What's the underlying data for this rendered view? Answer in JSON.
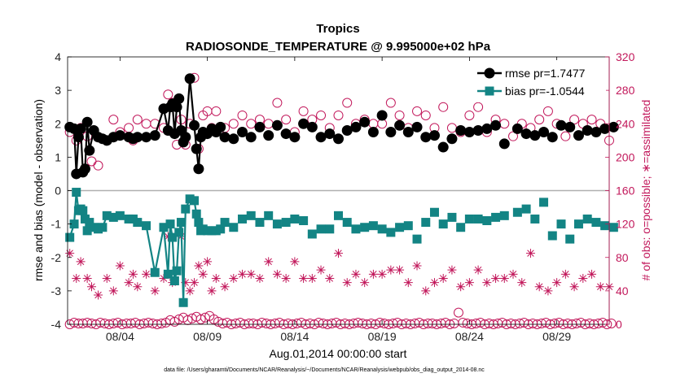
{
  "colors": {
    "rmse": "#000000",
    "bias": "#138484",
    "obs": "#c2185b",
    "zero_line": "#b0b0b0"
  },
  "chart_data": {
    "type": "line",
    "title": "Tropics",
    "subtitle": "RADIOSONDE_TEMPERATURE @ 9.995000e+02 hPa",
    "xlabel": "Aug.01,2014 00:00:00 start",
    "ylabel": "rmse and bias (model - observation)",
    "ylabel_right": "# of obs: o=possible; ∗=assimilated",
    "xlim": [
      0,
      31
    ],
    "ylim": [
      -4,
      4
    ],
    "ylim_right": [
      0,
      320
    ],
    "x_ticks": [
      3,
      8,
      13,
      18,
      23,
      28
    ],
    "x_tick_labels": [
      "08/04",
      "08/09",
      "08/14",
      "08/19",
      "08/24",
      "08/29"
    ],
    "y_ticks": [
      -4,
      -3,
      -2,
      -1,
      0,
      1,
      2,
      3,
      4
    ],
    "y_tick_labels": [
      "-4",
      "-3",
      "-2",
      "-1",
      "0",
      "1",
      "2",
      "3",
      "4"
    ],
    "y_ticks_right": [
      0,
      40,
      80,
      120,
      160,
      200,
      240,
      280,
      320
    ],
    "y_tick_labels_right": [
      "0",
      "40",
      "80",
      "120",
      "160",
      "200",
      "240",
      "280",
      "320"
    ],
    "legend": [
      {
        "key": "rmse",
        "label": "rmse pr=1.7477"
      },
      {
        "key": "bias",
        "label": "bias pr=-1.0544"
      }
    ],
    "legend_position": "top-right",
    "footnote": "data file: /Users/gharamti/Documents/NCAR/Reanalysis/~/Documents/NCAR/Reanalysis/webpub/obs_diag_output_2014-08.nc",
    "series": [
      {
        "name": "rmse",
        "axis": "left",
        "connected_segments": [
          [
            0,
            13
          ],
          [
            17,
            20
          ]
        ],
        "x": [
          0.125,
          0.375,
          0.5,
          0.625,
          0.75,
          0.875,
          1.0,
          1.125,
          1.25,
          1.5,
          1.75,
          2.0,
          2.25,
          2.625,
          3.0,
          3.5,
          3.75,
          4.0,
          4.5,
          5.0,
          5.5,
          5.75,
          5.875,
          6.0,
          6.125,
          6.25,
          6.375,
          6.5,
          6.625,
          6.75,
          7.0,
          7.25,
          7.375,
          7.5,
          7.625,
          7.75,
          8.0,
          8.25,
          8.5,
          8.75,
          9.0,
          9.5,
          10.0,
          10.5,
          11.0,
          11.5,
          12.0,
          12.5,
          13.0,
          13.5,
          14.0,
          14.5,
          15.0,
          15.5,
          16.0,
          16.5,
          17.0,
          17.5,
          18.0,
          18.5,
          19.0,
          19.5,
          20.0,
          20.5,
          21.0,
          21.5,
          22.0,
          22.5,
          23.0,
          23.5,
          24.0,
          24.5,
          25.0,
          25.75,
          26.25,
          26.75,
          27.25,
          27.75,
          28.25,
          28.75,
          29.25,
          29.75,
          30.25,
          30.75,
          31.25
        ],
        "values": [
          1.9,
          1.85,
          0.5,
          1.6,
          1.85,
          0.55,
          0.65,
          2.05,
          1.2,
          1.8,
          1.6,
          1.55,
          1.5,
          1.6,
          1.65,
          1.6,
          1.55,
          1.6,
          1.6,
          1.65,
          2.45,
          1.8,
          2.5,
          2.6,
          1.7,
          2.5,
          2.75,
          1.8,
          1.45,
          1.6,
          3.35,
          1.95,
          1.25,
          0.65,
          1.6,
          1.75,
          1.7,
          1.85,
          1.75,
          1.9,
          1.6,
          1.55,
          1.75,
          1.6,
          1.9,
          1.65,
          1.95,
          1.7,
          1.6,
          2.0,
          1.9,
          1.6,
          1.7,
          1.55,
          1.8,
          1.9,
          2.05,
          1.75,
          2.25,
          1.75,
          1.95,
          1.75,
          1.9,
          1.6,
          1.65,
          1.3,
          1.55,
          1.8,
          1.75,
          1.8,
          1.85,
          1.95,
          1.4,
          1.85,
          1.7,
          1.65,
          1.75,
          1.6,
          1.95,
          1.9,
          1.65,
          1.8,
          1.75,
          1.85,
          1.9
        ]
      },
      {
        "name": "bias",
        "axis": "left",
        "connected_segments": [
          [
            0,
            13
          ],
          [
            17,
            20
          ]
        ],
        "x": [
          0.125,
          0.375,
          0.5,
          0.625,
          0.75,
          0.875,
          1.0,
          1.125,
          1.25,
          1.5,
          1.75,
          2.0,
          2.25,
          2.625,
          3.0,
          3.5,
          3.75,
          4.0,
          4.5,
          5.0,
          5.5,
          5.75,
          5.875,
          6.0,
          6.125,
          6.25,
          6.375,
          6.5,
          6.625,
          6.75,
          7.0,
          7.25,
          7.375,
          7.5,
          7.625,
          7.75,
          8.0,
          8.25,
          8.5,
          8.75,
          9.0,
          9.5,
          10.0,
          10.5,
          11.0,
          11.5,
          12.0,
          12.5,
          13.0,
          13.5,
          14.0,
          14.5,
          15.0,
          15.5,
          16.0,
          16.5,
          17.0,
          17.5,
          18.0,
          18.5,
          19.0,
          19.5,
          20.0,
          20.5,
          21.0,
          21.5,
          22.0,
          22.5,
          23.0,
          23.5,
          24.0,
          24.5,
          25.0,
          25.75,
          26.25,
          26.75,
          27.25,
          27.75,
          28.25,
          28.75,
          29.25,
          29.75,
          30.25,
          30.75,
          31.25
        ],
        "values": [
          -1.4,
          -1.0,
          -0.05,
          -0.6,
          -0.55,
          -0.6,
          -0.85,
          -1.2,
          -0.95,
          -1.1,
          -1.15,
          -1.1,
          -0.75,
          -0.8,
          -0.75,
          -0.85,
          -0.85,
          -0.95,
          -1.05,
          -2.45,
          -1.1,
          -2.5,
          -1.0,
          -1.4,
          -2.7,
          -2.4,
          -1.25,
          -0.95,
          -3.35,
          -0.55,
          -0.25,
          -0.3,
          -0.7,
          -0.95,
          -1.2,
          -1.15,
          -1.2,
          -1.2,
          -1.2,
          -1.15,
          -0.95,
          -1.1,
          -0.85,
          -0.75,
          -0.95,
          -0.75,
          -1.0,
          -0.95,
          -0.85,
          -0.9,
          -1.3,
          -1.15,
          -1.15,
          -0.75,
          -0.95,
          -1.15,
          -1.1,
          -1.05,
          -1.15,
          -1.25,
          -1.1,
          -1.05,
          -1.45,
          -0.95,
          -0.65,
          -1.0,
          -0.8,
          -1.1,
          -0.85,
          -0.85,
          -0.9,
          -0.8,
          -0.75,
          -0.65,
          -0.55,
          -0.85,
          -0.35,
          -1.35,
          -1.0,
          -1.45,
          -1.0,
          -0.85,
          -0.95,
          -1.05,
          -1.1
        ]
      },
      {
        "name": "obs possible",
        "axis": "right",
        "marker": "circle",
        "x": [
          0.125,
          0.5,
          0.75,
          1.125,
          1.375,
          1.75,
          2.25,
          2.625,
          3.0,
          3.5,
          3.75,
          4.0,
          4.5,
          5.0,
          5.5,
          5.75,
          6.0,
          6.25,
          6.5,
          6.75,
          7.0,
          7.25,
          7.5,
          7.75,
          8.0,
          8.25,
          8.5,
          9.0,
          9.5,
          10.0,
          10.5,
          11.0,
          11.5,
          12.0,
          12.5,
          13.0,
          13.5,
          14.0,
          14.5,
          15.0,
          15.5,
          16.0,
          16.5,
          17.0,
          17.5,
          18.0,
          18.5,
          19.0,
          19.5,
          20.0,
          20.5,
          21.0,
          21.5,
          22.0,
          22.5,
          23.0,
          23.5,
          24.0,
          24.5,
          25.0,
          25.5,
          26.0,
          26.5,
          27.0,
          27.5,
          28.0,
          28.5,
          29.0,
          29.5,
          30.0,
          30.5,
          31.0
        ],
        "values": [
          230,
          220,
          235,
          225,
          195,
          190,
          220,
          245,
          230,
          235,
          220,
          245,
          240,
          240,
          235,
          275,
          265,
          215,
          245,
          215,
          240,
          295,
          210,
          250,
          255,
          235,
          255,
          235,
          240,
          250,
          240,
          245,
          240,
          265,
          245,
          230,
          255,
          245,
          250,
          235,
          250,
          265,
          240,
          245,
          240,
          240,
          265,
          250,
          235,
          255,
          250,
          235,
          260,
          235,
          230,
          250,
          260,
          230,
          245,
          240,
          225,
          240,
          235,
          245,
          255,
          240,
          225,
          245,
          240,
          245,
          240,
          220
        ]
      },
      {
        "name": "obs assimilated",
        "axis": "right",
        "marker": "asterisk",
        "x": [
          0.125,
          0.5,
          0.75,
          1.125,
          1.375,
          1.75,
          2.25,
          2.625,
          3.0,
          3.5,
          3.75,
          4.0,
          4.5,
          5.0,
          5.5,
          5.75,
          6.0,
          6.25,
          6.5,
          6.75,
          7.0,
          7.25,
          7.5,
          7.75,
          8.0,
          8.25,
          8.5,
          9.0,
          9.5,
          10.0,
          10.5,
          11.0,
          11.5,
          12.0,
          12.5,
          13.0,
          13.5,
          14.0,
          14.5,
          15.0,
          15.5,
          16.0,
          16.5,
          17.0,
          17.5,
          18.0,
          18.5,
          19.0,
          19.5,
          20.0,
          20.5,
          21.0,
          21.5,
          22.0,
          22.5,
          23.0,
          23.5,
          24.0,
          24.5,
          25.0,
          25.5,
          26.0,
          26.5,
          27.0,
          27.5,
          28.0,
          28.5,
          29.0,
          29.5,
          30.0,
          30.5,
          31.0
        ],
        "values": [
          85,
          55,
          75,
          55,
          45,
          35,
          55,
          40,
          70,
          50,
          60,
          45,
          60,
          40,
          55,
          105,
          50,
          65,
          105,
          50,
          40,
          50,
          70,
          60,
          75,
          40,
          55,
          45,
          55,
          60,
          60,
          55,
          75,
          60,
          55,
          75,
          55,
          55,
          65,
          55,
          85,
          50,
          60,
          50,
          60,
          60,
          65,
          65,
          50,
          70,
          40,
          50,
          55,
          65,
          45,
          50,
          65,
          50,
          55,
          55,
          60,
          50,
          85,
          45,
          40,
          50,
          60,
          45,
          55,
          60,
          45,
          45
        ]
      },
      {
        "name": "zero row circles",
        "axis": "right",
        "marker": "circle",
        "x": [
          0.125,
          0.375,
          0.625,
          0.875,
          1.125,
          1.375,
          1.625,
          1.875,
          2.125,
          2.375,
          2.625,
          2.875,
          3.125,
          3.375,
          3.625,
          3.875,
          4.125,
          4.375,
          4.625,
          4.875,
          5.125,
          5.375,
          5.625,
          5.875,
          6.125,
          6.375,
          6.625,
          6.875,
          7.125,
          7.375,
          7.625,
          7.875,
          8.125,
          8.375,
          8.625,
          8.875,
          9.125,
          9.375,
          9.625,
          9.875,
          10.125,
          10.375,
          10.625,
          10.875,
          11.125,
          11.375,
          11.625,
          11.875,
          12.125,
          12.375,
          12.625,
          12.875,
          13.125,
          13.375,
          13.625,
          13.875,
          14.125,
          14.375,
          14.625,
          14.875,
          15.125,
          15.375,
          15.625,
          15.875,
          16.125,
          16.375,
          16.625,
          16.875,
          17.125,
          17.375,
          17.625,
          17.875,
          18.125,
          18.375,
          18.625,
          18.875,
          19.125,
          19.375,
          19.625,
          19.875,
          20.125,
          20.375,
          20.625,
          20.875,
          21.125,
          21.375,
          21.625,
          21.875,
          22.125,
          22.375,
          22.625,
          22.875,
          23.125,
          23.375,
          23.625,
          23.875,
          24.125,
          24.375,
          24.625,
          24.875,
          25.125,
          25.375,
          25.625,
          25.875,
          26.125,
          26.375,
          26.625,
          26.875,
          27.125,
          27.375,
          27.625,
          27.875,
          28.125,
          28.375,
          28.625,
          28.875,
          29.125,
          29.375,
          29.625,
          29.875,
          30.125,
          30.375,
          30.625,
          30.875,
          31.125
        ],
        "values": [
          0,
          2,
          1,
          1,
          2,
          1,
          0,
          2,
          1,
          0,
          1,
          2,
          0,
          1,
          1,
          2,
          0,
          1,
          2,
          1,
          0,
          1,
          2,
          5,
          3,
          6,
          8,
          5,
          7,
          9,
          6,
          8,
          10,
          6,
          3,
          1,
          2,
          0,
          1,
          2,
          0,
          1,
          1,
          0,
          2,
          1,
          0,
          1,
          2,
          0,
          1,
          0,
          1,
          2,
          0,
          1,
          0,
          2,
          1,
          0,
          1,
          2,
          0,
          1,
          0,
          1,
          2,
          1,
          0,
          1,
          0,
          2,
          1,
          0,
          1,
          2,
          0,
          1,
          0,
          1,
          2,
          0,
          1,
          1,
          0,
          1,
          2,
          0,
          1,
          14,
          2,
          1,
          0,
          1,
          2,
          0,
          1,
          0,
          1,
          2,
          0,
          1,
          0,
          1,
          2,
          0,
          1,
          0,
          1,
          2,
          0,
          1,
          2,
          0,
          1,
          0,
          1,
          2,
          0,
          1,
          0,
          1,
          2,
          0,
          1
        ]
      }
    ]
  }
}
